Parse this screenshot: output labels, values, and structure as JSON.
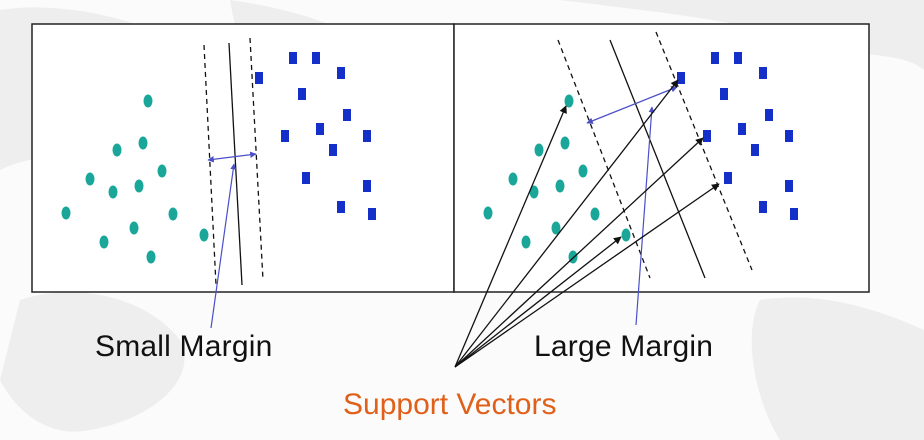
{
  "labels": {
    "small_margin": "Small Margin",
    "large_margin": "Large Margin",
    "support_vectors": "Support Vectors"
  },
  "colors": {
    "circle_fill": "#1aa79a",
    "square_fill": "#1530c8",
    "arrow_blue": "#4a4fc8",
    "support_vectors_text": "#e0601a",
    "line": "#111111",
    "panel_border": "#222222"
  },
  "icons": {
    "circle_points": "teal-ellipse",
    "square_points": "blue-rectangle"
  }
}
